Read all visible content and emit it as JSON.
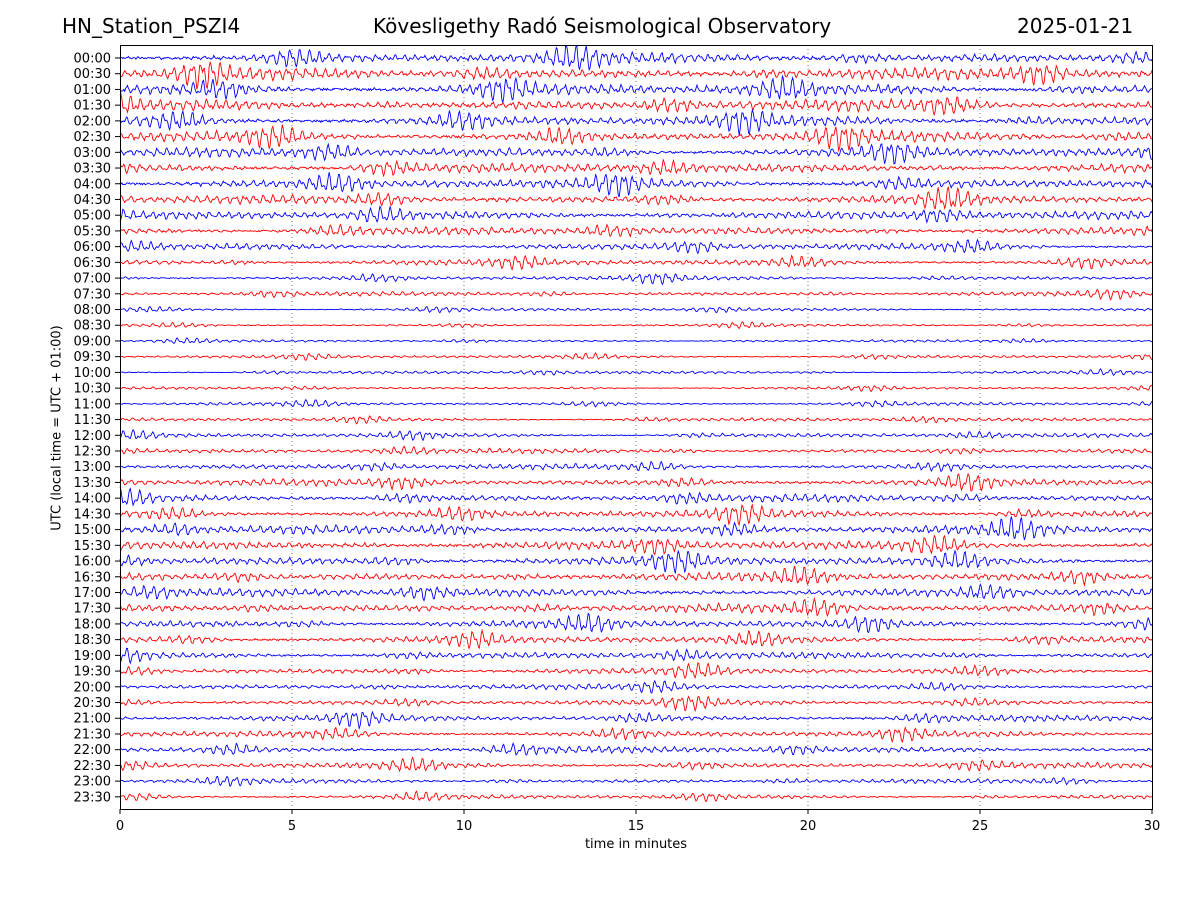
{
  "header": {
    "station": "HN_Station_PSZI4",
    "observatory": "Kövesligethy Radó Seismological Observatory",
    "date": "2025-01-21"
  },
  "chart_data": {
    "type": "line",
    "title": "Kövesligethy Radó Seismological Observatory",
    "xlabel": "time in minutes",
    "ylabel": "UTC (local time = UTC + 01:00)",
    "xlim": [
      0,
      30
    ],
    "xticks": [
      0,
      5,
      10,
      15,
      20,
      25,
      30
    ],
    "grid": "vertical dotted at x ticks",
    "rows": [
      "00:00",
      "00:30",
      "01:00",
      "01:30",
      "02:00",
      "02:30",
      "03:00",
      "03:30",
      "04:00",
      "04:30",
      "05:00",
      "05:30",
      "06:00",
      "06:30",
      "07:00",
      "07:30",
      "08:00",
      "08:30",
      "09:00",
      "09:30",
      "10:00",
      "10:30",
      "11:00",
      "11:30",
      "12:00",
      "12:30",
      "13:00",
      "13:30",
      "14:00",
      "14:30",
      "15:00",
      "15:30",
      "16:00",
      "16:30",
      "17:00",
      "17:30",
      "18:00",
      "18:30",
      "19:00",
      "19:30",
      "20:00",
      "20:30",
      "21:00",
      "21:30",
      "22:00",
      "22:30",
      "23:00",
      "23:30"
    ],
    "trace_colors": [
      "#0000ff",
      "#ff0000"
    ],
    "relative_amplitude": [
      0.9,
      0.95,
      0.95,
      0.9,
      0.85,
      0.85,
      0.8,
      0.8,
      0.8,
      0.7,
      0.7,
      0.65,
      0.55,
      0.5,
      0.35,
      0.35,
      0.25,
      0.2,
      0.2,
      0.25,
      0.25,
      0.2,
      0.25,
      0.3,
      0.35,
      0.4,
      0.45,
      0.55,
      0.6,
      0.65,
      0.7,
      0.75,
      0.75,
      0.7,
      0.7,
      0.7,
      0.65,
      0.6,
      0.55,
      0.5,
      0.45,
      0.45,
      0.5,
      0.5,
      0.55,
      0.45,
      0.35,
      0.35
    ]
  }
}
